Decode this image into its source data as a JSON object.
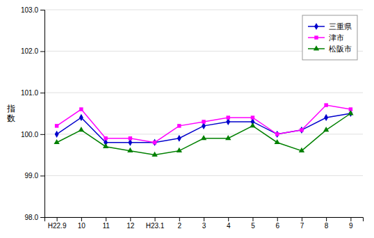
{
  "chart_data": {
    "type": "line",
    "y_label": "指\n数",
    "categories": [
      "H22.9",
      "10",
      "11",
      "12",
      "H23.1",
      "2",
      "3",
      "4",
      "5",
      "6",
      "7",
      "8",
      "9"
    ],
    "series": [
      {
        "name": "三重県",
        "color": "#0000CC",
        "marker": "diamond",
        "values": [
          100.0,
          100.4,
          99.8,
          99.8,
          99.8,
          99.9,
          100.2,
          100.3,
          100.3,
          100.0,
          100.1,
          100.4,
          100.5
        ]
      },
      {
        "name": "津市",
        "color": "#FF00FF",
        "marker": "square",
        "values": [
          100.2,
          100.6,
          99.9,
          99.9,
          99.8,
          100.2,
          100.3,
          100.4,
          100.4,
          100.0,
          100.1,
          100.7,
          100.6
        ]
      },
      {
        "name": "松阪市",
        "color": "#008000",
        "marker": "triangle",
        "values": [
          99.8,
          100.1,
          99.7,
          99.6,
          99.5,
          99.6,
          99.9,
          99.9,
          100.2,
          99.8,
          99.6,
          100.1,
          100.5
        ]
      }
    ],
    "ylim": [
      98.0,
      103.0
    ],
    "yticks": [
      {
        "value": 98.0,
        "label": "98.0"
      },
      {
        "value": 99.0,
        "label": "99.0"
      },
      {
        "value": 100.0,
        "label": "100.0"
      },
      {
        "value": 101.0,
        "label": "101.0"
      },
      {
        "value": 102.0,
        "label": "102.0"
      },
      {
        "value": 103.0,
        "label": "103.0"
      }
    ],
    "grid": true,
    "legend": "upper right"
  }
}
